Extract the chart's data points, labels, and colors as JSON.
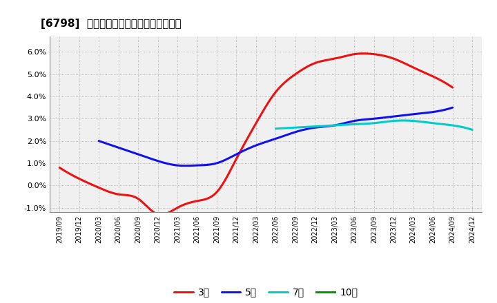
{
  "title": "[6798]  経常利益マージンの平均値の推移",
  "x_labels": [
    "2019/09",
    "2019/12",
    "2020/03",
    "2020/06",
    "2020/09",
    "2020/12",
    "2021/03",
    "2021/06",
    "2021/09",
    "2021/12",
    "2022/03",
    "2022/06",
    "2022/09",
    "2022/12",
    "2023/03",
    "2023/06",
    "2023/09",
    "2023/12",
    "2024/03",
    "2024/06",
    "2024/09",
    "2024/12"
  ],
  "series_3yr": [
    0.008,
    0.003,
    -0.001,
    -0.004,
    -0.006,
    -0.013,
    -0.01,
    -0.007,
    -0.003,
    0.012,
    0.028,
    0.042,
    0.05,
    0.055,
    0.057,
    0.059,
    0.059,
    0.057,
    0.053,
    0.049,
    0.044,
    null
  ],
  "series_5yr": [
    null,
    null,
    0.02,
    0.017,
    0.014,
    0.011,
    0.009,
    0.009,
    0.01,
    0.014,
    0.018,
    0.021,
    0.024,
    0.026,
    0.027,
    0.029,
    0.03,
    0.031,
    0.032,
    0.033,
    0.035,
    null
  ],
  "series_7yr": [
    null,
    null,
    null,
    null,
    null,
    null,
    null,
    null,
    null,
    null,
    null,
    0.0255,
    0.026,
    0.0265,
    0.027,
    0.0275,
    0.028,
    0.029,
    0.029,
    0.028,
    0.027,
    0.025
  ],
  "series_10yr": [
    null,
    null,
    null,
    null,
    null,
    null,
    null,
    null,
    null,
    null,
    null,
    null,
    null,
    null,
    null,
    null,
    null,
    null,
    null,
    null,
    null,
    null
  ],
  "color_3yr": "#ee1111",
  "color_5yr": "#1111ee",
  "color_7yr": "#00cccc",
  "color_10yr": "#009900",
  "ylim": [
    -0.012,
    0.067
  ],
  "yticks": [
    -0.01,
    0.0,
    0.01,
    0.02,
    0.03,
    0.04,
    0.05,
    0.06
  ],
  "bg_color": "#ffffff",
  "plot_bg_color": "#f0f0f0",
  "grid_color": "#aaaaaa",
  "legend_labels": [
    "3年",
    "5年",
    "7年",
    "10年"
  ]
}
